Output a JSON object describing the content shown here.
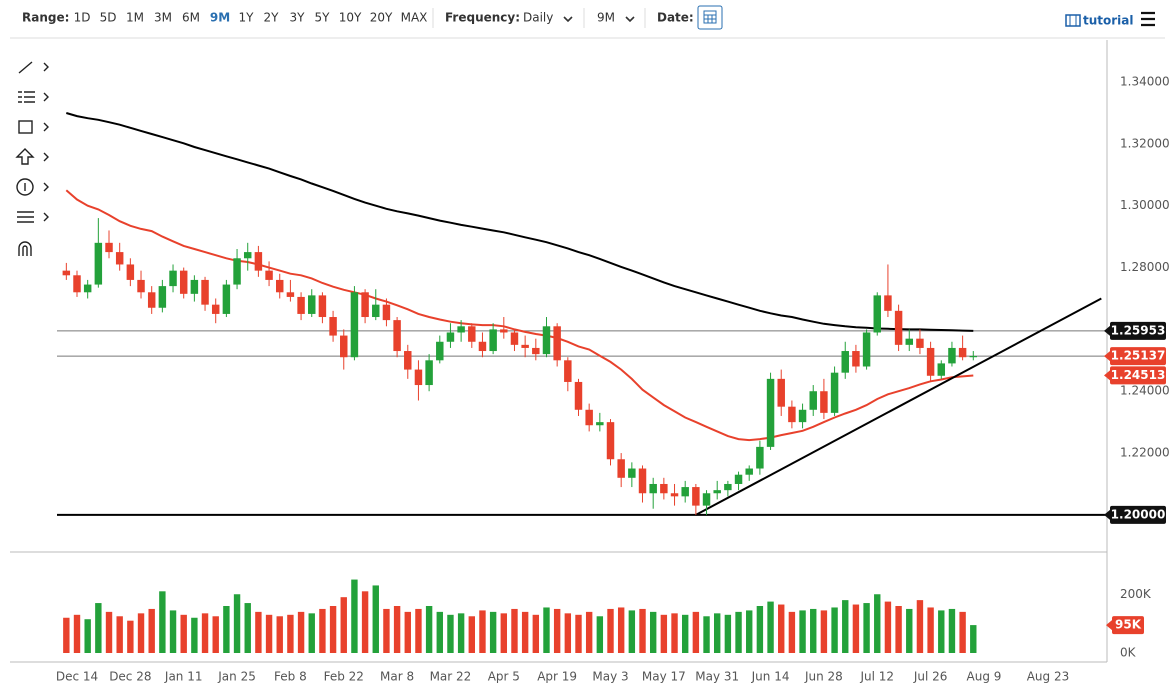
{
  "toolbar": {
    "range_label": "Range:",
    "ranges": [
      "1D",
      "5D",
      "1M",
      "3M",
      "6M",
      "9M",
      "1Y",
      "2Y",
      "3Y",
      "5Y",
      "10Y",
      "20Y",
      "MAX"
    ],
    "active_range": "9M",
    "frequency_label": "Frequency:",
    "frequency": "Daily",
    "period": "9M",
    "date_label": "Date:",
    "tutorial": "tutorial"
  },
  "chart_data": {
    "type": "candlestick",
    "categories": [
      null,
      "Dec 14",
      null,
      null,
      null,
      null,
      "Dec 28",
      null,
      null,
      null,
      null,
      "Jan 11",
      null,
      null,
      null,
      null,
      "Jan 25",
      null,
      null,
      null,
      null,
      "Feb 8",
      null,
      null,
      null,
      null,
      "Feb 22",
      null,
      null,
      null,
      null,
      "Mar 8",
      null,
      null,
      null,
      null,
      "Mar 22",
      null,
      null,
      null,
      null,
      "Apr 5",
      null,
      null,
      null,
      null,
      "Apr 19",
      null,
      null,
      null,
      null,
      "May 3",
      null,
      null,
      null,
      null,
      "May 17",
      null,
      null,
      null,
      null,
      "May 31",
      null,
      null,
      null,
      null,
      "Jun 14",
      null,
      null,
      null,
      null,
      "Jun 28",
      null,
      null,
      null,
      null,
      "Jul 12",
      null,
      null,
      null,
      null,
      "Jul 26",
      null,
      null,
      null,
      null,
      "Aug 9",
      null,
      null,
      null,
      null,
      null,
      "Aug 23",
      null,
      null,
      null,
      null,
      null
    ],
    "up_color": "#23a13a",
    "down_color": "#e8412c",
    "ohlc": [
      [
        1.279,
        1.2815,
        1.276,
        1.2775
      ],
      [
        1.2775,
        1.279,
        1.2705,
        1.272
      ],
      [
        1.272,
        1.276,
        1.27,
        1.2745
      ],
      [
        1.2745,
        1.296,
        1.2735,
        1.288
      ],
      [
        1.288,
        1.292,
        1.283,
        1.285
      ],
      [
        1.285,
        1.288,
        1.279,
        1.281
      ],
      [
        1.281,
        1.283,
        1.274,
        1.276
      ],
      [
        1.276,
        1.279,
        1.27,
        1.272
      ],
      [
        1.272,
        1.274,
        1.265,
        1.267
      ],
      [
        1.267,
        1.276,
        1.2655,
        1.274
      ],
      [
        1.274,
        1.281,
        1.272,
        1.279
      ],
      [
        1.279,
        1.28,
        1.27,
        1.2715
      ],
      [
        1.2715,
        1.2775,
        1.269,
        1.276
      ],
      [
        1.276,
        1.277,
        1.266,
        1.268
      ],
      [
        1.268,
        1.27,
        1.262,
        1.265
      ],
      [
        1.265,
        1.276,
        1.264,
        1.2745
      ],
      [
        1.2745,
        1.286,
        1.273,
        1.283
      ],
      [
        1.283,
        1.288,
        1.279,
        1.285
      ],
      [
        1.285,
        1.287,
        1.277,
        1.279
      ],
      [
        1.279,
        1.282,
        1.274,
        1.276
      ],
      [
        1.276,
        1.278,
        1.27,
        1.272
      ],
      [
        1.272,
        1.276,
        1.269,
        1.2705
      ],
      [
        1.2705,
        1.272,
        1.263,
        1.265
      ],
      [
        1.265,
        1.273,
        1.264,
        1.271
      ],
      [
        1.271,
        1.272,
        1.262,
        1.264
      ],
      [
        1.264,
        1.266,
        1.256,
        1.258
      ],
      [
        1.258,
        1.26,
        1.247,
        1.251
      ],
      [
        1.251,
        1.274,
        1.25,
        1.272
      ],
      [
        1.272,
        1.273,
        1.262,
        1.264
      ],
      [
        1.264,
        1.273,
        1.263,
        1.268
      ],
      [
        1.268,
        1.27,
        1.261,
        1.263
      ],
      [
        1.263,
        1.264,
        1.251,
        1.253
      ],
      [
        1.253,
        1.255,
        1.244,
        1.247
      ],
      [
        1.247,
        1.25,
        1.237,
        1.242
      ],
      [
        1.242,
        1.252,
        1.24,
        1.25
      ],
      [
        1.25,
        1.258,
        1.249,
        1.256
      ],
      [
        1.256,
        1.262,
        1.254,
        1.259
      ],
      [
        1.259,
        1.263,
        1.256,
        1.261
      ],
      [
        1.261,
        1.262,
        1.254,
        1.256
      ],
      [
        1.256,
        1.259,
        1.251,
        1.253
      ],
      [
        1.253,
        1.262,
        1.252,
        1.26
      ],
      [
        1.26,
        1.264,
        1.257,
        1.259
      ],
      [
        1.259,
        1.26,
        1.253,
        1.255
      ],
      [
        1.255,
        1.258,
        1.251,
        1.254
      ],
      [
        1.254,
        1.257,
        1.25,
        1.252
      ],
      [
        1.252,
        1.264,
        1.251,
        1.261
      ],
      [
        1.261,
        1.262,
        1.248,
        1.25
      ],
      [
        1.25,
        1.251,
        1.24,
        1.243
      ],
      [
        1.243,
        1.244,
        1.232,
        1.234
      ],
      [
        1.234,
        1.236,
        1.227,
        1.229
      ],
      [
        1.229,
        1.233,
        1.227,
        1.23
      ],
      [
        1.23,
        1.231,
        1.216,
        1.218
      ],
      [
        1.218,
        1.22,
        1.209,
        1.212
      ],
      [
        1.212,
        1.217,
        1.209,
        1.215
      ],
      [
        1.215,
        1.216,
        1.204,
        1.207
      ],
      [
        1.207,
        1.212,
        1.202,
        1.21
      ],
      [
        1.21,
        1.212,
        1.205,
        1.207
      ],
      [
        1.207,
        1.21,
        1.203,
        1.206
      ],
      [
        1.206,
        1.211,
        1.204,
        1.209
      ],
      [
        1.209,
        1.21,
        1.2,
        1.203
      ],
      [
        1.203,
        1.208,
        1.2,
        1.207
      ],
      [
        1.207,
        1.211,
        1.205,
        1.208
      ],
      [
        1.208,
        1.211,
        1.206,
        1.21
      ],
      [
        1.21,
        1.214,
        1.208,
        1.213
      ],
      [
        1.213,
        1.216,
        1.211,
        1.215
      ],
      [
        1.215,
        1.224,
        1.213,
        1.222
      ],
      [
        1.222,
        1.246,
        1.221,
        1.244
      ],
      [
        1.244,
        1.247,
        1.232,
        1.235
      ],
      [
        1.235,
        1.237,
        1.228,
        1.23
      ],
      [
        1.23,
        1.236,
        1.228,
        1.234
      ],
      [
        1.234,
        1.242,
        1.232,
        1.24
      ],
      [
        1.24,
        1.244,
        1.231,
        1.233
      ],
      [
        1.233,
        1.248,
        1.232,
        1.246
      ],
      [
        1.246,
        1.256,
        1.244,
        1.253
      ],
      [
        1.253,
        1.255,
        1.246,
        1.248
      ],
      [
        1.248,
        1.26,
        1.247,
        1.259
      ],
      [
        1.259,
        1.272,
        1.258,
        1.271
      ],
      [
        1.271,
        1.281,
        1.264,
        1.266
      ],
      [
        1.266,
        1.268,
        1.253,
        1.255
      ],
      [
        1.255,
        1.26,
        1.253,
        1.257
      ],
      [
        1.257,
        1.26,
        1.252,
        1.254
      ],
      [
        1.254,
        1.256,
        1.243,
        1.245
      ],
      [
        1.245,
        1.25,
        1.244,
        1.249
      ],
      [
        1.249,
        1.256,
        1.248,
        1.254
      ],
      [
        1.254,
        1.258,
        1.25,
        1.251
      ],
      [
        1.251,
        1.253,
        1.25,
        1.2514
      ]
    ],
    "moving_averages": [
      {
        "color": "#000000",
        "values": [
          1.33,
          1.329,
          1.3283,
          1.3278,
          1.327,
          1.3262,
          1.3252,
          1.3242,
          1.3232,
          1.3222,
          1.3212,
          1.3202,
          1.319,
          1.318,
          1.317,
          1.316,
          1.315,
          1.314,
          1.313,
          1.312,
          1.3108,
          1.3096,
          1.3085,
          1.3072,
          1.306,
          1.3048,
          1.3035,
          1.3022,
          1.301,
          1.3,
          1.299,
          1.2982,
          1.2975,
          1.2968,
          1.296,
          1.2952,
          1.2945,
          1.2938,
          1.2932,
          1.2926,
          1.292,
          1.2914,
          1.2906,
          1.2898,
          1.289,
          1.2882,
          1.2872,
          1.2862,
          1.285,
          1.284,
          1.2828,
          1.2815,
          1.2802,
          1.279,
          1.2778,
          1.2765,
          1.2752,
          1.274,
          1.273,
          1.272,
          1.271,
          1.27,
          1.269,
          1.268,
          1.267,
          1.266,
          1.2652,
          1.2645,
          1.264,
          1.2632,
          1.2625,
          1.2618,
          1.2614,
          1.261,
          1.2607,
          1.2605,
          1.2603,
          1.2602,
          1.2601,
          1.26,
          1.26,
          1.2599,
          1.2598,
          1.2597,
          1.2596,
          1.2595
        ]
      },
      {
        "color": "#e8412c",
        "values": [
          1.305,
          1.302,
          1.3,
          1.2988,
          1.297,
          1.295,
          1.2935,
          1.2925,
          1.2918,
          1.29,
          1.2885,
          1.287,
          1.286,
          1.285,
          1.284,
          1.283,
          1.2822,
          1.2818,
          1.281,
          1.28,
          1.279,
          1.278,
          1.2775,
          1.2765,
          1.275,
          1.2738,
          1.2728,
          1.272,
          1.2712,
          1.27,
          1.269,
          1.2678,
          1.2665,
          1.265,
          1.264,
          1.2632,
          1.2625,
          1.262,
          1.2616,
          1.2614,
          1.2614,
          1.261,
          1.26,
          1.2592,
          1.2585,
          1.258,
          1.2572,
          1.256,
          1.2545,
          1.2535,
          1.2515,
          1.2495,
          1.247,
          1.244,
          1.2405,
          1.238,
          1.2355,
          1.2335,
          1.2315,
          1.23,
          1.2285,
          1.227,
          1.2255,
          1.2245,
          1.2242,
          1.2245,
          1.225,
          1.2258,
          1.2265,
          1.2272,
          1.2285,
          1.23,
          1.2315,
          1.2328,
          1.234,
          1.2355,
          1.2375,
          1.239,
          1.24,
          1.241,
          1.2422,
          1.2432,
          1.2438,
          1.2445,
          1.2448,
          1.2451
        ]
      }
    ],
    "trendline": {
      "color": "#000000",
      "start": {
        "index": 59,
        "value": 1.2
      },
      "end": {
        "index": 97,
        "value": 1.27
      }
    },
    "levels": [
      {
        "value": 1.25953,
        "color": "#111111",
        "line": "#777777"
      },
      {
        "value": 1.25137,
        "color": "#e8412c",
        "line": "#777777"
      },
      {
        "value": 1.24513,
        "color": "#e8412c"
      },
      {
        "value": 1.2,
        "label": "1.20000",
        "color": "#111111",
        "line": "#000000"
      }
    ],
    "ylim": [
      1.188,
      1.3536
    ],
    "yticks": [
      {
        "value": 1.22,
        "label": "1.22000"
      },
      {
        "value": 1.24,
        "label": "1.24000"
      },
      {
        "value": 1.28,
        "label": "1.28000"
      },
      {
        "value": 1.3,
        "label": "1.30000"
      },
      {
        "value": 1.32,
        "label": "1.32000"
      },
      {
        "value": 1.34,
        "label": "1.34000"
      }
    ],
    "volume": {
      "values": [
        120000,
        130000,
        115000,
        170000,
        140000,
        125000,
        110000,
        135000,
        150000,
        210000,
        145000,
        130000,
        120000,
        135000,
        125000,
        160000,
        200000,
        170000,
        140000,
        130000,
        125000,
        130000,
        140000,
        135000,
        150000,
        160000,
        190000,
        250000,
        210000,
        230000,
        150000,
        160000,
        140000,
        150000,
        160000,
        140000,
        130000,
        135000,
        125000,
        145000,
        140000,
        135000,
        150000,
        140000,
        130000,
        155000,
        150000,
        135000,
        130000,
        140000,
        125000,
        150000,
        155000,
        145000,
        150000,
        140000,
        130000,
        135000,
        130000,
        140000,
        125000,
        135000,
        130000,
        140000,
        145000,
        160000,
        175000,
        165000,
        140000,
        145000,
        150000,
        145000,
        155000,
        180000,
        165000,
        170000,
        200000,
        175000,
        160000,
        150000,
        180000,
        155000,
        145000,
        150000,
        140000,
        95000
      ],
      "ylim": [
        0,
        320000
      ],
      "yticks": [
        {
          "value": 0,
          "label": "0K"
        },
        {
          "value": 200000,
          "label": "200K"
        }
      ],
      "last_label": {
        "value": 95000,
        "label": "95K",
        "color": "#e8412c"
      }
    }
  }
}
